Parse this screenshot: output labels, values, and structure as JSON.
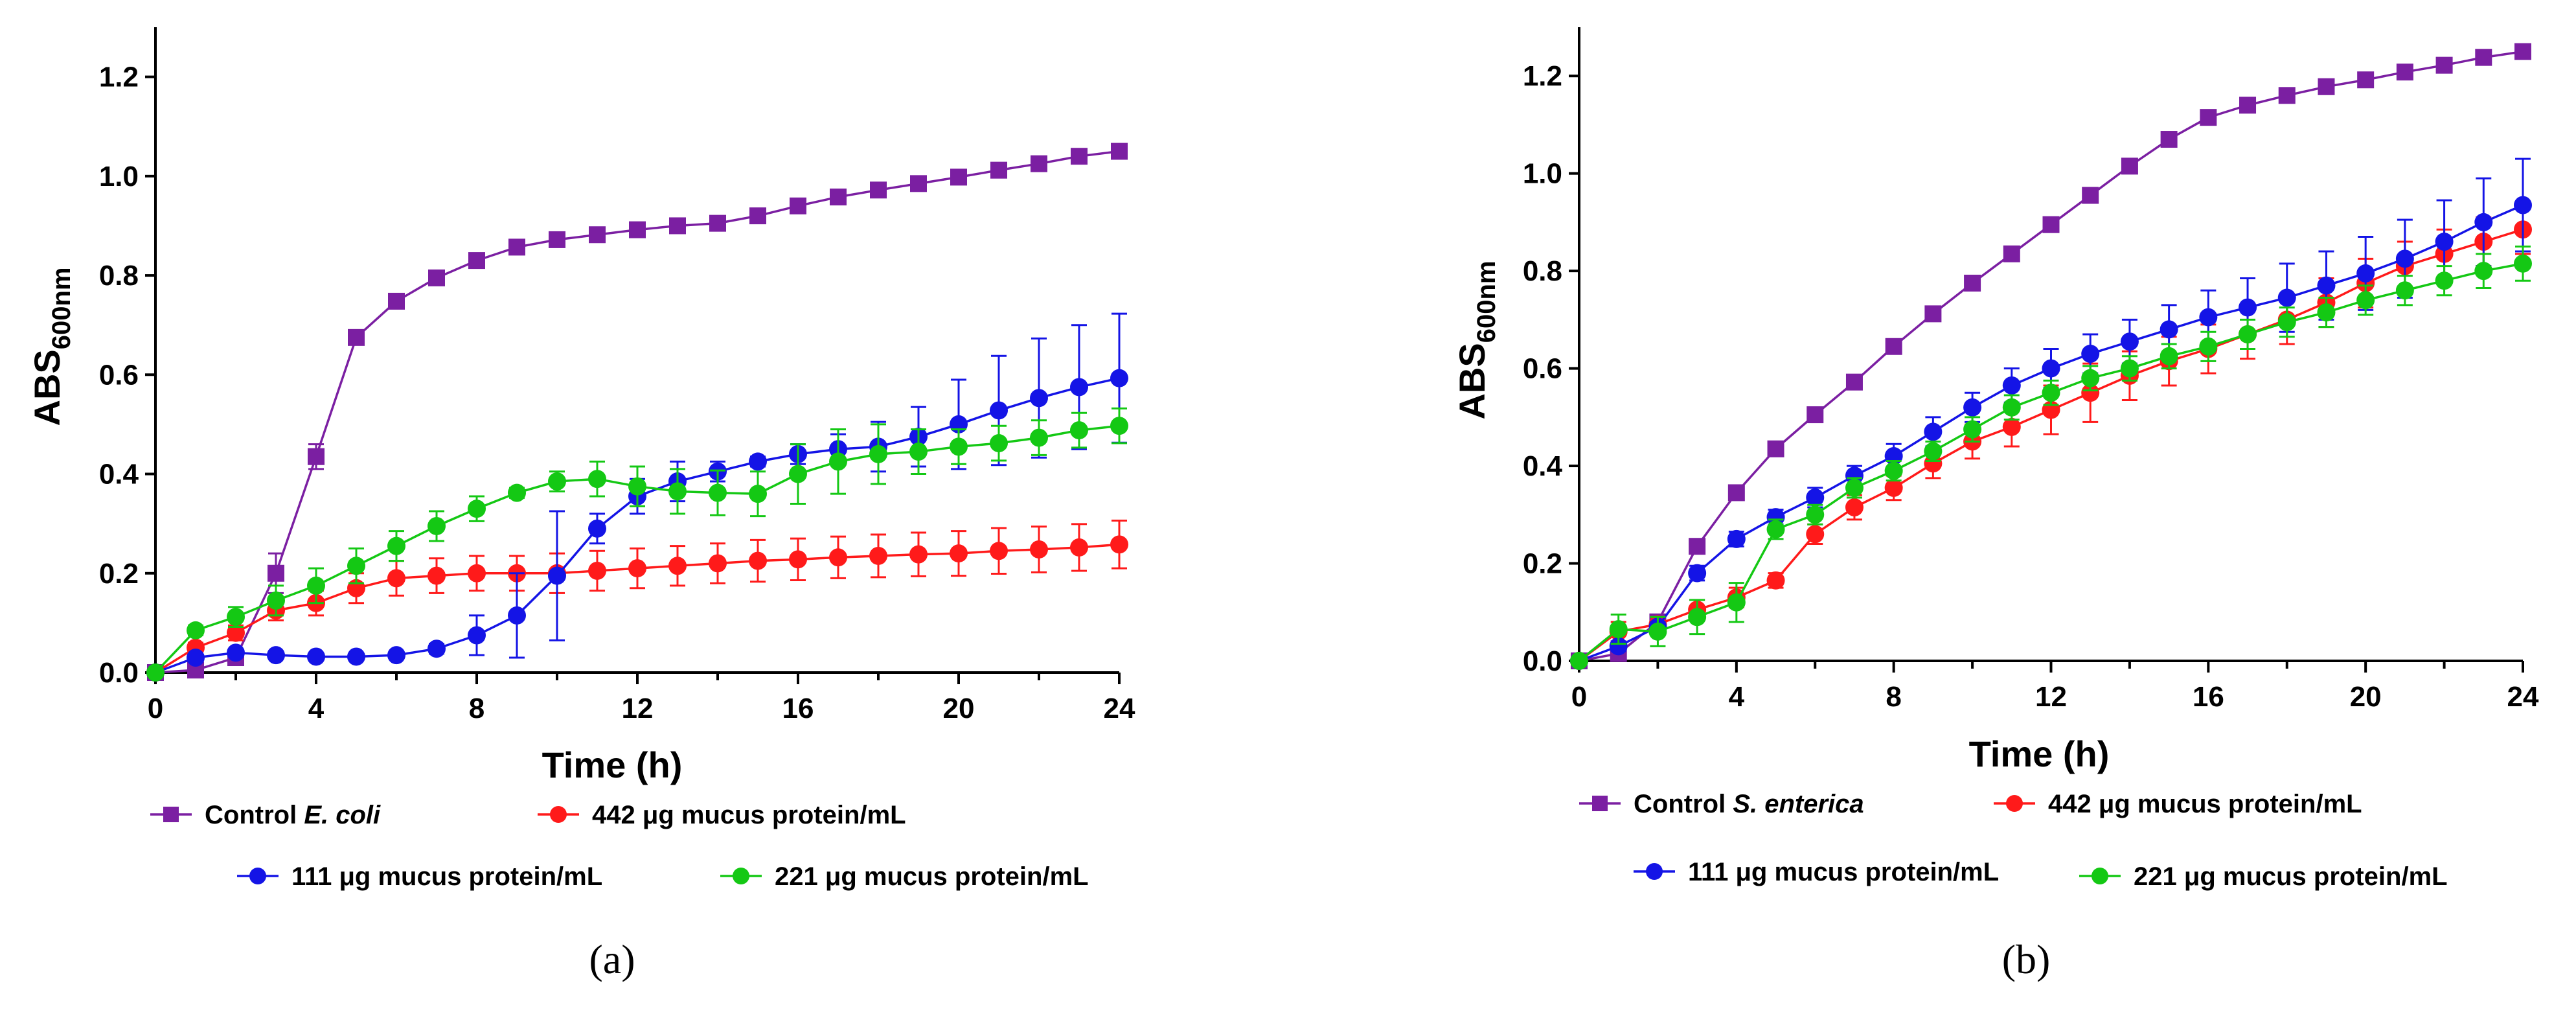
{
  "chart_data": [
    {
      "type": "line",
      "panel_label": "(a)",
      "ylabel_main": "ABS",
      "ylabel_sub": "600nm",
      "xlabel": "Time (h)",
      "ylim": [
        0,
        1.3
      ],
      "xlim": [
        0,
        24
      ],
      "x_ticks": [
        0,
        4,
        8,
        12,
        16,
        20,
        24
      ],
      "y_ticks": [
        0.0,
        0.2,
        0.4,
        0.6,
        0.8,
        1.0,
        1.2
      ],
      "x": [
        0,
        1,
        2,
        3,
        4,
        5,
        6,
        7,
        8,
        9,
        10,
        11,
        12,
        13,
        14,
        15,
        16,
        17,
        18,
        19,
        20,
        21,
        22,
        23,
        24
      ],
      "series": [
        {
          "name": "Control E. coli",
          "legend_prefix": "Control ",
          "legend_italic": "E. coli",
          "legend_suffix": "",
          "color": "#7B1FA2",
          "marker": "square",
          "values": [
            0.0,
            0.005,
            0.03,
            0.2,
            0.435,
            0.675,
            0.748,
            0.795,
            0.83,
            0.857,
            0.872,
            0.882,
            0.892,
            0.9,
            0.905,
            0.92,
            0.94,
            0.958,
            0.972,
            0.985,
            0.998,
            1.012,
            1.025,
            1.04,
            1.05
          ],
          "errors": [
            0,
            0.005,
            0.01,
            0.04,
            0.025,
            0.01,
            0.008,
            0.008,
            0.008,
            0.008,
            0.008,
            0.008,
            0.008,
            0.008,
            0.008,
            0.008,
            0.008,
            0.008,
            0.008,
            0.008,
            0.008,
            0.008,
            0.008,
            0.008,
            0.008
          ]
        },
        {
          "name": "442 µg mucus protein/mL",
          "legend_prefix": "442 μg mucus protein/mL",
          "legend_italic": "",
          "legend_suffix": "",
          "color": "#FF1A1A",
          "marker": "circle",
          "values": [
            0.0,
            0.05,
            0.08,
            0.125,
            0.14,
            0.17,
            0.19,
            0.195,
            0.2,
            0.2,
            0.2,
            0.205,
            0.21,
            0.215,
            0.22,
            0.225,
            0.228,
            0.232,
            0.235,
            0.238,
            0.24,
            0.245,
            0.248,
            0.252,
            0.258
          ],
          "errors": [
            0,
            0.01,
            0.015,
            0.02,
            0.025,
            0.03,
            0.035,
            0.035,
            0.035,
            0.035,
            0.04,
            0.04,
            0.04,
            0.04,
            0.04,
            0.042,
            0.042,
            0.042,
            0.043,
            0.044,
            0.045,
            0.046,
            0.046,
            0.047,
            0.048
          ]
        },
        {
          "name": "111 µg mucus protein/mL",
          "legend_prefix": "111 μg mucus protein/mL",
          "legend_italic": "",
          "legend_suffix": "",
          "color": "#1414E6",
          "marker": "circle",
          "values": [
            0.0,
            0.03,
            0.04,
            0.035,
            0.032,
            0.032,
            0.035,
            0.048,
            0.075,
            0.115,
            0.195,
            0.29,
            0.355,
            0.385,
            0.405,
            0.425,
            0.44,
            0.45,
            0.455,
            0.475,
            0.5,
            0.528,
            0.553,
            0.575,
            0.593
          ],
          "errors": [
            0,
            0.005,
            0.005,
            0.005,
            0.005,
            0.005,
            0.005,
            0.01,
            0.04,
            0.085,
            0.13,
            0.03,
            0.035,
            0.04,
            0.02,
            0.01,
            0.02,
            0.03,
            0.05,
            0.06,
            0.09,
            0.11,
            0.12,
            0.125,
            0.13
          ]
        },
        {
          "name": "221 µg mucus protein/mL",
          "legend_prefix": "221 μg mucus protein/mL",
          "legend_italic": "",
          "legend_suffix": "",
          "color": "#14C814",
          "marker": "circle",
          "values": [
            0.0,
            0.085,
            0.112,
            0.145,
            0.175,
            0.215,
            0.255,
            0.295,
            0.33,
            0.362,
            0.385,
            0.39,
            0.375,
            0.365,
            0.362,
            0.36,
            0.4,
            0.425,
            0.44,
            0.445,
            0.455,
            0.462,
            0.473,
            0.488,
            0.497
          ],
          "errors": [
            0,
            0.01,
            0.02,
            0.03,
            0.035,
            0.035,
            0.03,
            0.03,
            0.025,
            0.01,
            0.02,
            0.035,
            0.04,
            0.045,
            0.045,
            0.045,
            0.06,
            0.065,
            0.06,
            0.045,
            0.035,
            0.035,
            0.035,
            0.035,
            0.035
          ]
        }
      ]
    },
    {
      "type": "line",
      "panel_label": "(b)",
      "ylabel_main": "ABS",
      "ylabel_sub": "600nm",
      "xlabel": "Time (h)",
      "ylim": [
        0,
        1.3
      ],
      "xlim": [
        0,
        24
      ],
      "x_ticks": [
        0,
        4,
        8,
        12,
        16,
        20,
        24
      ],
      "y_ticks": [
        0.0,
        0.2,
        0.4,
        0.6,
        0.8,
        1.0,
        1.2
      ],
      "x": [
        0,
        1,
        2,
        3,
        4,
        5,
        6,
        7,
        8,
        9,
        10,
        11,
        12,
        13,
        14,
        15,
        16,
        17,
        18,
        19,
        20,
        21,
        22,
        23,
        24
      ],
      "series": [
        {
          "name": "Control S. enterica",
          "legend_prefix": "Control ",
          "legend_italic": "S. enterica",
          "legend_suffix": "",
          "color": "#7B1FA2",
          "marker": "square",
          "values": [
            0.0,
            0.015,
            0.08,
            0.235,
            0.345,
            0.435,
            0.505,
            0.572,
            0.645,
            0.712,
            0.775,
            0.835,
            0.895,
            0.955,
            1.015,
            1.07,
            1.115,
            1.14,
            1.16,
            1.178,
            1.192,
            1.208,
            1.222,
            1.238,
            1.25
          ],
          "errors": [
            0,
            0.005,
            0.005,
            0.008,
            0.008,
            0.008,
            0.008,
            0.008,
            0.008,
            0.008,
            0.008,
            0.008,
            0.008,
            0.008,
            0.008,
            0.008,
            0.008,
            0.008,
            0.008,
            0.008,
            0.008,
            0.008,
            0.008,
            0.008,
            0.008
          ]
        },
        {
          "name": "442 µg mucus protein/mL",
          "legend_prefix": "442 μg mucus protein/mL",
          "legend_italic": "",
          "legend_suffix": "",
          "color": "#FF1A1A",
          "marker": "circle",
          "values": [
            0.0,
            0.06,
            0.075,
            0.105,
            0.13,
            0.165,
            0.26,
            0.315,
            0.355,
            0.405,
            0.45,
            0.48,
            0.515,
            0.55,
            0.585,
            0.615,
            0.64,
            0.67,
            0.7,
            0.735,
            0.775,
            0.81,
            0.835,
            0.86,
            0.885
          ],
          "errors": [
            0,
            0.02,
            0.015,
            0.02,
            0.02,
            0.015,
            0.02,
            0.025,
            0.025,
            0.03,
            0.035,
            0.04,
            0.05,
            0.06,
            0.05,
            0.05,
            0.05,
            0.05,
            0.05,
            0.05,
            0.05,
            0.05,
            0.05,
            0.05,
            0.05
          ]
        },
        {
          "name": "111 µg mucus protein/mL",
          "legend_prefix": "111 μg mucus protein/mL",
          "legend_italic": "",
          "legend_suffix": "",
          "color": "#1414E6",
          "marker": "circle",
          "values": [
            0.0,
            0.03,
            0.07,
            0.18,
            0.25,
            0.295,
            0.335,
            0.38,
            0.42,
            0.47,
            0.52,
            0.565,
            0.6,
            0.63,
            0.655,
            0.68,
            0.705,
            0.725,
            0.745,
            0.77,
            0.795,
            0.825,
            0.86,
            0.9,
            0.935
          ],
          "errors": [
            0,
            0.01,
            0.01,
            0.015,
            0.015,
            0.015,
            0.02,
            0.02,
            0.025,
            0.03,
            0.03,
            0.035,
            0.04,
            0.04,
            0.045,
            0.05,
            0.055,
            0.06,
            0.07,
            0.07,
            0.075,
            0.08,
            0.085,
            0.09,
            0.095
          ]
        },
        {
          "name": "221 µg mucus protein/mL",
          "legend_prefix": "221 μg mucus protein/mL",
          "legend_italic": "",
          "legend_suffix": "",
          "color": "#14C814",
          "marker": "circle",
          "values": [
            0.0,
            0.065,
            0.06,
            0.09,
            0.12,
            0.27,
            0.3,
            0.355,
            0.39,
            0.43,
            0.475,
            0.52,
            0.55,
            0.58,
            0.6,
            0.625,
            0.645,
            0.67,
            0.695,
            0.715,
            0.74,
            0.76,
            0.78,
            0.8,
            0.815
          ],
          "errors": [
            0,
            0.03,
            0.03,
            0.035,
            0.04,
            0.02,
            0.02,
            0.02,
            0.02,
            0.02,
            0.025,
            0.025,
            0.025,
            0.025,
            0.025,
            0.025,
            0.03,
            0.03,
            0.03,
            0.03,
            0.03,
            0.03,
            0.03,
            0.035,
            0.035
          ]
        }
      ]
    }
  ]
}
